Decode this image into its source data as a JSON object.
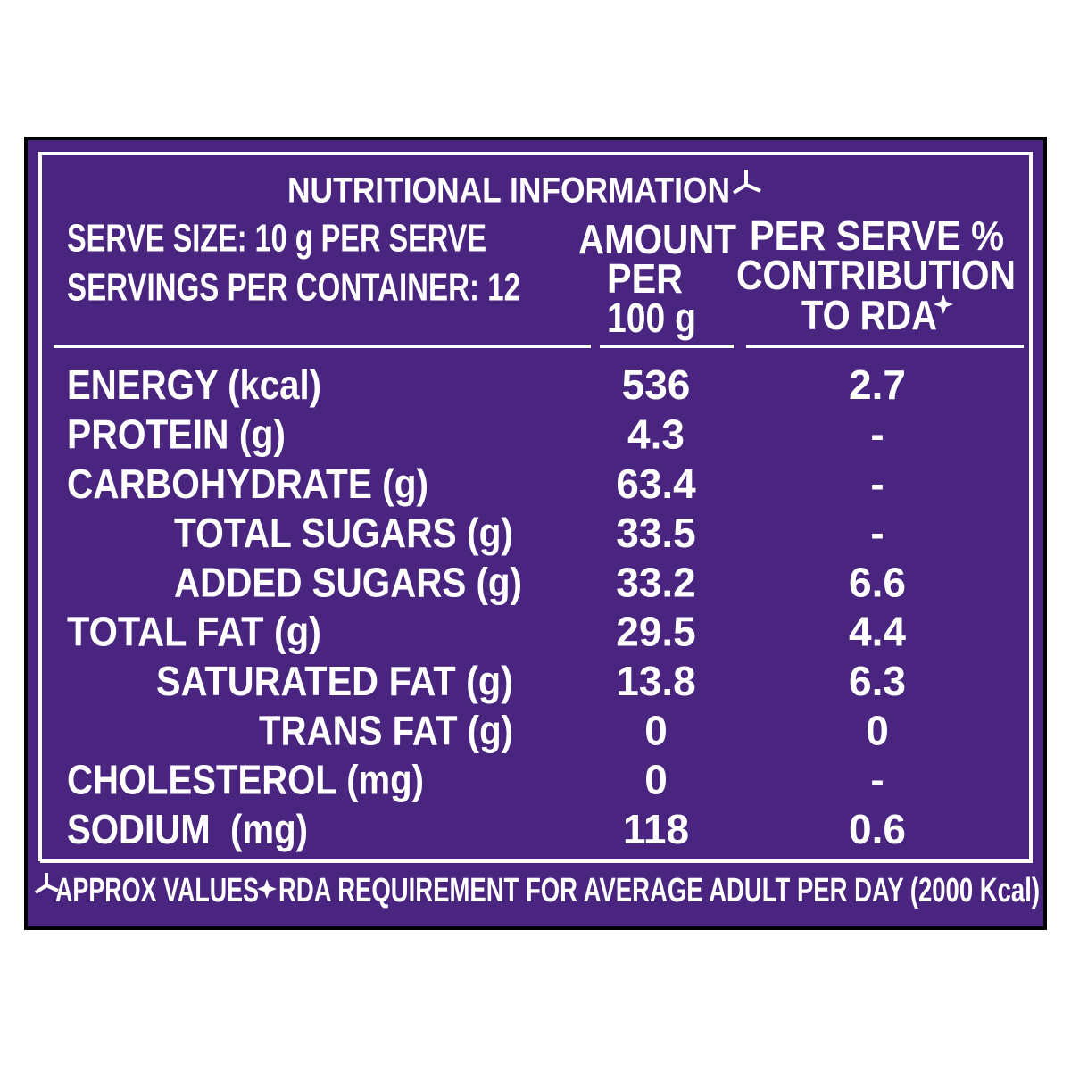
{
  "header": {
    "title": "NUTRITIONAL INFORMATION",
    "serve_size": "SERVE SIZE: 10 g PER SERVE",
    "servings": "SERVINGS PER CONTAINER: 12",
    "amount_heading": [
      "AMOUNT",
      "PER",
      "100 g"
    ],
    "rda_heading": [
      "PER SERVE %",
      "CONTRIBUTION",
      "TO RDA"
    ]
  },
  "table": {
    "rows": [
      [
        "ENERGY (kcal)",
        "536",
        "2.7"
      ],
      [
        "PROTEIN (g)",
        "4.3",
        "-"
      ],
      [
        "CARBOHYDRATE (g)",
        "63.4",
        "-"
      ],
      [
        "TOTAL SUGARS (g)",
        "33.5",
        "-"
      ],
      [
        "ADDED SUGARS (g)",
        "33.2",
        "6.6"
      ],
      [
        "TOTAL FAT (g)",
        "29.5",
        "4.4"
      ],
      [
        "SATURATED FAT (g)",
        "13.8",
        "6.3"
      ],
      [
        "TRANS FAT (g)",
        "0",
        "0"
      ],
      [
        "CHOLESTEROL (mg)",
        "0",
        "-"
      ],
      [
        "SODIUM  (mg)",
        "118",
        "0.6"
      ]
    ]
  },
  "footer": {
    "approx": "APPROX VALUES",
    "rda": "RDA REQUIREMENT FOR AVERAGE ADULT PER DAY (2000 Kcal)"
  }
}
